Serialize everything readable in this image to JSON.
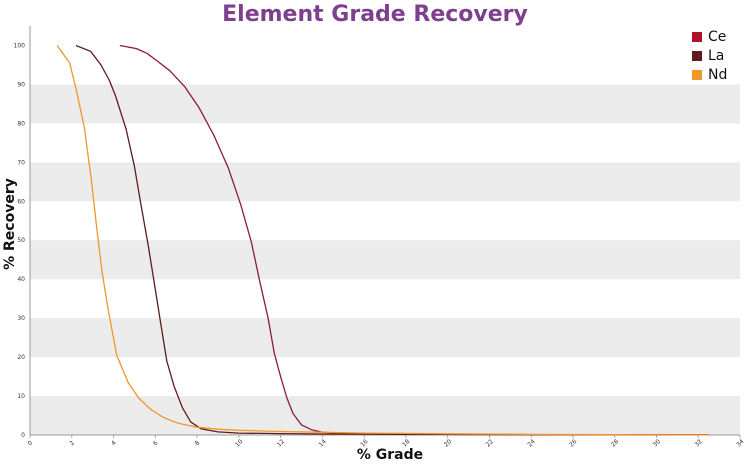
{
  "chart_data": {
    "type": "line",
    "title": "Element Grade Recovery",
    "xlabel": "% Grade",
    "ylabel": "% Recovery",
    "xlim": [
      0,
      34
    ],
    "ylim": [
      0,
      105
    ],
    "x_ticks": [
      0,
      2,
      4,
      6,
      8,
      10,
      12,
      14,
      16,
      18,
      20,
      22,
      24,
      26,
      28,
      30,
      32,
      34
    ],
    "y_ticks": [
      0,
      10,
      20,
      30,
      40,
      50,
      60,
      70,
      80,
      90,
      100
    ],
    "grid": "horizontal bands",
    "legend_position": "top-right",
    "series": [
      {
        "name": "Ce",
        "color": "#8b1a3f",
        "points": [
          [
            4.3,
            100
          ],
          [
            5.1,
            99.2
          ],
          [
            5.6,
            98
          ],
          [
            6.1,
            96
          ],
          [
            6.7,
            93.5
          ],
          [
            7.4,
            89.5
          ],
          [
            8.1,
            84
          ],
          [
            8.8,
            77
          ],
          [
            9.5,
            68.5
          ],
          [
            10.1,
            59
          ],
          [
            10.6,
            49.5
          ],
          [
            11.0,
            39.5
          ],
          [
            11.4,
            30
          ],
          [
            11.7,
            21
          ],
          [
            12.0,
            15
          ],
          [
            12.3,
            9.5
          ],
          [
            12.6,
            5.5
          ],
          [
            13.0,
            2.6
          ],
          [
            13.5,
            1.3
          ],
          [
            14.0,
            0.7
          ],
          [
            15,
            0.4
          ],
          [
            17,
            0.25
          ],
          [
            20,
            0.15
          ],
          [
            25,
            0.1
          ],
          [
            30,
            0.05
          ],
          [
            32.5,
            0.02
          ]
        ]
      },
      {
        "name": "La",
        "color": "#5e1a1c",
        "points": [
          [
            2.2,
            100
          ],
          [
            2.9,
            98.5
          ],
          [
            3.4,
            95
          ],
          [
            3.8,
            91
          ],
          [
            4.1,
            87
          ],
          [
            4.6,
            78.5
          ],
          [
            5.0,
            69
          ],
          [
            5.3,
            59.5
          ],
          [
            5.65,
            49
          ],
          [
            5.95,
            39
          ],
          [
            6.25,
            29
          ],
          [
            6.55,
            19
          ],
          [
            6.9,
            12.5
          ],
          [
            7.3,
            7
          ],
          [
            7.7,
            3.3
          ],
          [
            8.2,
            1.6
          ],
          [
            9.0,
            0.8
          ],
          [
            10,
            0.5
          ],
          [
            12,
            0.35
          ],
          [
            14,
            0.25
          ],
          [
            18,
            0.15
          ],
          [
            24,
            0.1
          ],
          [
            30,
            0.05
          ],
          [
            32.5,
            0.02
          ]
        ]
      },
      {
        "name": "Nd",
        "color": "#f0962b",
        "points": [
          [
            1.3,
            100
          ],
          [
            1.9,
            95.5
          ],
          [
            2.2,
            89
          ],
          [
            2.6,
            79
          ],
          [
            2.95,
            65
          ],
          [
            3.2,
            53
          ],
          [
            3.45,
            42
          ],
          [
            3.75,
            32
          ],
          [
            4.15,
            20.5
          ],
          [
            4.7,
            13.5
          ],
          [
            5.2,
            9.5
          ],
          [
            5.8,
            6.5
          ],
          [
            6.4,
            4.5
          ],
          [
            7.1,
            3
          ],
          [
            8.0,
            2
          ],
          [
            9.0,
            1.5
          ],
          [
            10,
            1.2
          ],
          [
            12,
            0.9
          ],
          [
            14,
            0.7
          ],
          [
            16,
            0.5
          ],
          [
            18,
            0.4
          ],
          [
            20,
            0.3
          ],
          [
            24,
            0.15
          ],
          [
            28,
            0.08
          ],
          [
            32.5,
            0.02
          ]
        ]
      }
    ]
  }
}
